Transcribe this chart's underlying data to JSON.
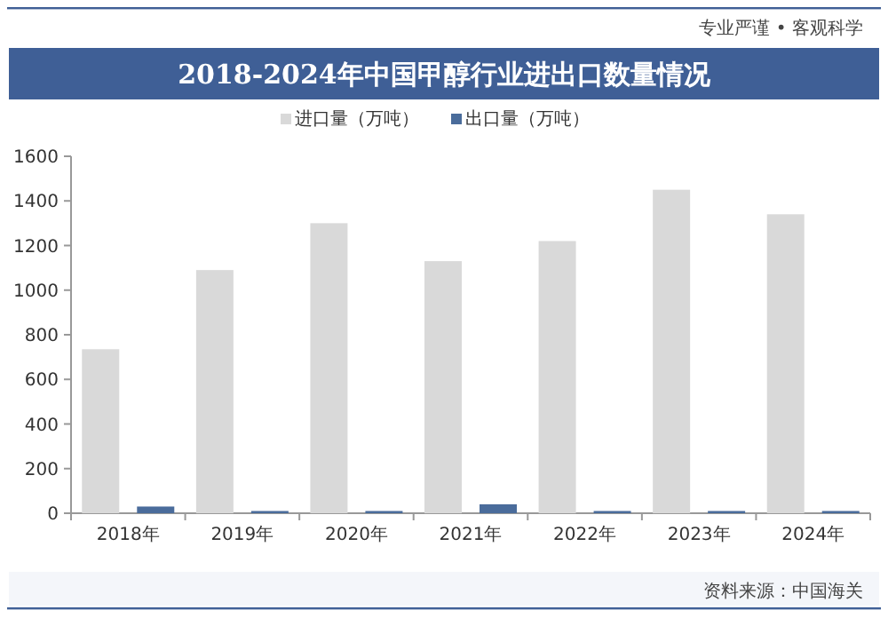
{
  "chart_data": {
    "type": "bar",
    "title": "2018-2024年中国甲醇行业进出口数量情况",
    "categories": [
      "2018年",
      "2019年",
      "2020年",
      "2021年",
      "2022年",
      "2023年",
      "2024年"
    ],
    "series": [
      {
        "name": "进口量（万吨）",
        "color": "#d9d9d9",
        "values": [
          735,
          1090,
          1300,
          1130,
          1220,
          1450,
          1340
        ]
      },
      {
        "name": "出口量（万吨）",
        "color": "#4a6c9b",
        "values": [
          30,
          10,
          10,
          40,
          10,
          10,
          10
        ]
      }
    ],
    "ylim": [
      0,
      1600
    ],
    "yticks": [
      0,
      200,
      400,
      600,
      800,
      1000,
      1200,
      1400,
      1600
    ],
    "legend": "top",
    "annotations": [
      "专业严谨 • 客观科学",
      "资料来源：中国海关"
    ]
  }
}
